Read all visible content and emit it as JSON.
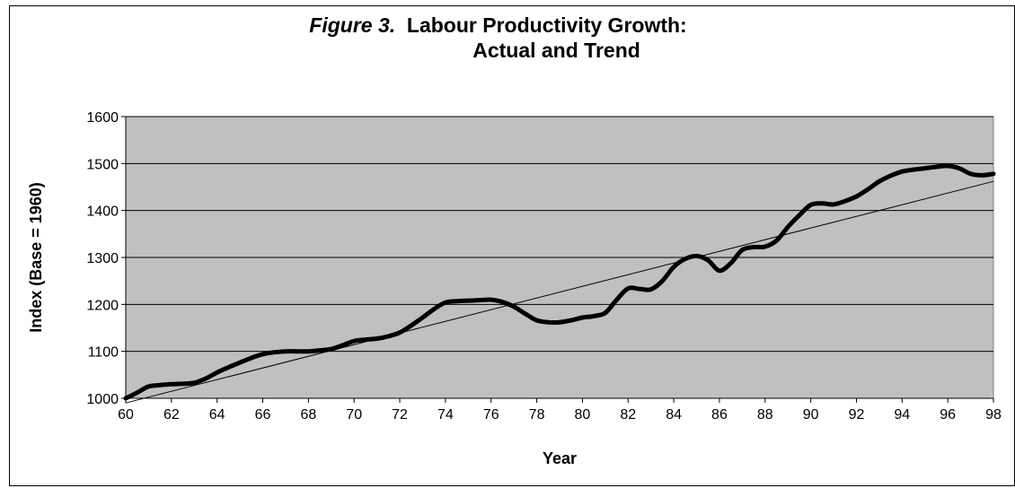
{
  "chart_data": {
    "type": "line",
    "title_prefix": "Figure 3.",
    "title_line1": "Labour Productivity Growth:",
    "title_line2": "Actual and Trend",
    "xlabel": "Year",
    "ylabel": "Index (Base = 1960)",
    "xlim": [
      60,
      98
    ],
    "ylim": [
      1000,
      1600
    ],
    "x_ticks": [
      60,
      62,
      64,
      66,
      68,
      70,
      72,
      74,
      76,
      78,
      80,
      82,
      84,
      86,
      88,
      90,
      92,
      94,
      96,
      98
    ],
    "y_ticks": [
      1000,
      1100,
      1200,
      1300,
      1400,
      1500,
      1600
    ],
    "grid": "horizontal",
    "plot_background": "#c0c0c0",
    "series": [
      {
        "role": "actual",
        "color": "#000000",
        "x": [
          60,
          60.5,
          61,
          61.5,
          62,
          62.5,
          63,
          63.5,
          64,
          64.5,
          65,
          65.5,
          66,
          66.5,
          67,
          67.5,
          68,
          68.5,
          69,
          69.5,
          70,
          70.5,
          71,
          71.5,
          72,
          72.5,
          73,
          73.5,
          74,
          74.5,
          75,
          75.5,
          76,
          76.5,
          77,
          77.5,
          78,
          78.5,
          79,
          79.5,
          80,
          80.5,
          81,
          81.5,
          82,
          82.5,
          83,
          83.5,
          84,
          84.5,
          85,
          85.5,
          86,
          86.5,
          87,
          87.5,
          88,
          88.5,
          89,
          89.5,
          90,
          90.5,
          91,
          91.5,
          92,
          92.5,
          93,
          93.5,
          94,
          94.5,
          95,
          95.5,
          96,
          96.5,
          97,
          97.5,
          98
        ],
        "y": [
          1000,
          1012,
          1025,
          1028,
          1030,
          1031,
          1033,
          1042,
          1055,
          1066,
          1076,
          1086,
          1094,
          1098,
          1100,
          1100,
          1100,
          1102,
          1105,
          1113,
          1122,
          1125,
          1127,
          1132,
          1140,
          1155,
          1172,
          1190,
          1204,
          1207,
          1208,
          1209,
          1210,
          1205,
          1195,
          1180,
          1166,
          1162,
          1162,
          1166,
          1172,
          1175,
          1182,
          1210,
          1234,
          1233,
          1232,
          1250,
          1280,
          1297,
          1303,
          1294,
          1272,
          1288,
          1316,
          1322,
          1323,
          1336,
          1365,
          1390,
          1412,
          1415,
          1413,
          1420,
          1430,
          1445,
          1462,
          1474,
          1483,
          1487,
          1490,
          1493,
          1495,
          1490,
          1478,
          1475,
          1478
        ]
      },
      {
        "role": "trend",
        "color": "#000000",
        "x": [
          60,
          98
        ],
        "y": [
          990,
          1462
        ]
      }
    ]
  }
}
